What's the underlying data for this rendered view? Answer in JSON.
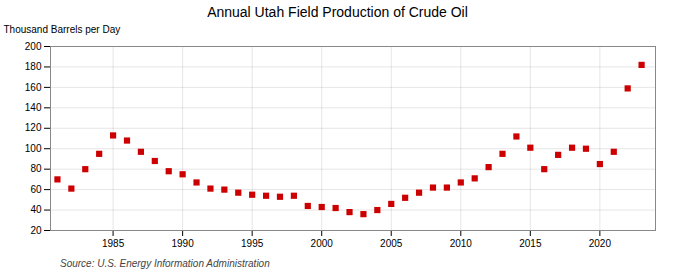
{
  "chart_data": {
    "type": "scatter",
    "title": "Annual Utah Field Production of Crude Oil",
    "ylabel": "Thousand Barrels per Day",
    "source": "Source: U.S. Energy Information Administration",
    "x": [
      1981,
      1982,
      1983,
      1984,
      1985,
      1986,
      1987,
      1988,
      1989,
      1990,
      1991,
      1992,
      1993,
      1994,
      1995,
      1996,
      1997,
      1998,
      1999,
      2000,
      2001,
      2002,
      2003,
      2004,
      2005,
      2006,
      2007,
      2008,
      2009,
      2010,
      2011,
      2012,
      2013,
      2014,
      2015,
      2016,
      2017,
      2018,
      2019,
      2020,
      2021,
      2022,
      2023
    ],
    "values": [
      70,
      61,
      80,
      95,
      113,
      108,
      97,
      88,
      78,
      75,
      67,
      61,
      60,
      57,
      55,
      54,
      53,
      54,
      44,
      43,
      42,
      38,
      36,
      40,
      46,
      52,
      57,
      62,
      62,
      67,
      71,
      82,
      95,
      112,
      101,
      80,
      94,
      101,
      100,
      85,
      97,
      159,
      182
    ],
    "color": "#cc0000",
    "marker": "square",
    "xlim": [
      1980.5,
      2024
    ],
    "xticks": [
      1985,
      1990,
      1995,
      2000,
      2005,
      2010,
      2015,
      2020
    ],
    "ylim": [
      20,
      200
    ],
    "yticks": [
      20,
      40,
      60,
      80,
      100,
      120,
      140,
      160,
      180,
      200
    ],
    "grid": true
  }
}
